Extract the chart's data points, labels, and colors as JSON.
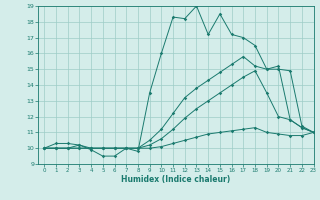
{
  "xlabel": "Humidex (Indice chaleur)",
  "x_values": [
    0,
    1,
    2,
    3,
    4,
    5,
    6,
    7,
    8,
    9,
    10,
    11,
    12,
    13,
    14,
    15,
    16,
    17,
    18,
    19,
    20,
    21,
    22,
    23
  ],
  "line1": [
    10.0,
    10.3,
    10.3,
    10.2,
    9.9,
    9.5,
    9.5,
    10.0,
    9.8,
    13.5,
    16.0,
    18.3,
    18.2,
    19.0,
    17.2,
    18.5,
    17.2,
    17.0,
    16.5,
    15.0,
    15.0,
    14.9,
    11.4,
    11.0
  ],
  "line2": [
    10.0,
    10.0,
    10.0,
    10.2,
    10.0,
    10.0,
    10.0,
    10.0,
    10.0,
    10.5,
    11.2,
    12.2,
    13.2,
    13.8,
    14.3,
    14.8,
    15.3,
    15.8,
    15.2,
    15.0,
    15.2,
    11.8,
    11.3,
    11.0
  ],
  "line3": [
    10.0,
    10.0,
    10.0,
    10.0,
    10.0,
    10.0,
    10.0,
    10.0,
    10.0,
    10.2,
    10.6,
    11.2,
    11.9,
    12.5,
    13.0,
    13.5,
    14.0,
    14.5,
    14.9,
    13.5,
    12.0,
    11.8,
    11.3,
    11.0
  ],
  "line4": [
    10.0,
    10.0,
    10.0,
    10.0,
    10.0,
    10.0,
    10.0,
    10.0,
    10.0,
    10.0,
    10.1,
    10.3,
    10.5,
    10.7,
    10.9,
    11.0,
    11.1,
    11.2,
    11.3,
    11.0,
    10.9,
    10.8,
    10.8,
    11.0
  ],
  "line_color": "#1a7a6e",
  "bg_color": "#d4edea",
  "grid_color": "#9eccc7",
  "ylim": [
    9,
    19
  ],
  "xlim": [
    -0.5,
    23
  ],
  "yticks": [
    9,
    10,
    11,
    12,
    13,
    14,
    15,
    16,
    17,
    18,
    19
  ],
  "xticks": [
    0,
    1,
    2,
    3,
    4,
    5,
    6,
    7,
    8,
    9,
    10,
    11,
    12,
    13,
    14,
    15,
    16,
    17,
    18,
    19,
    20,
    21,
    22,
    23
  ]
}
